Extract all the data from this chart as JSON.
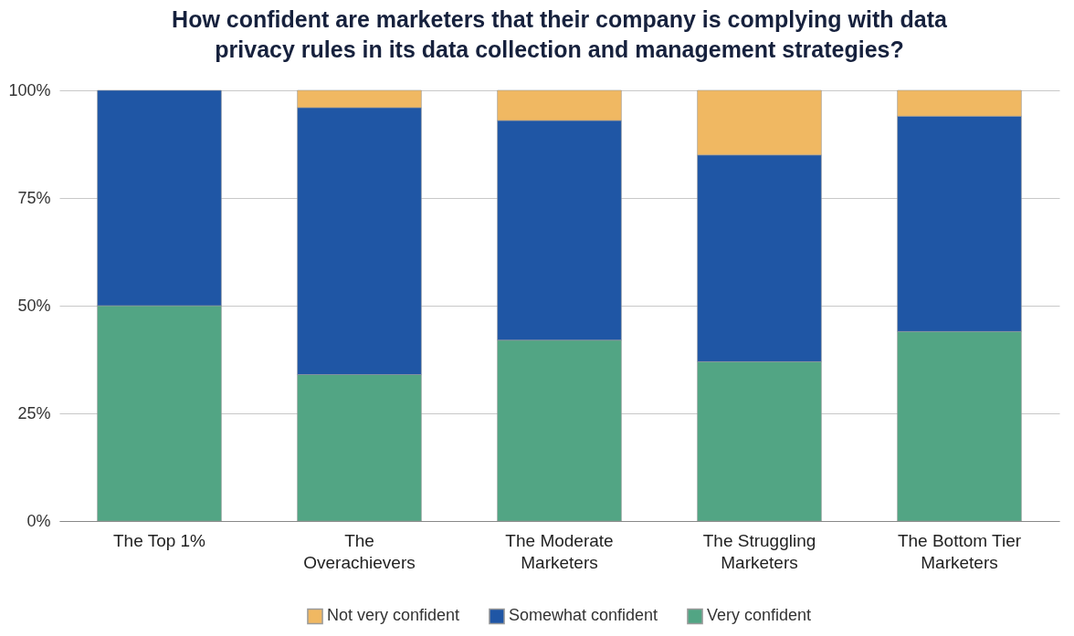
{
  "chart_data": {
    "type": "bar",
    "title": "How confident are marketers that their company is complying with data privacy rules in its data collection and management strategies?",
    "categories": [
      "The Top 1%",
      "The Overachievers",
      "The Moderate Marketers",
      "The Struggling Marketers",
      "The Bottom Tier Marketers"
    ],
    "stacked": true,
    "series": [
      {
        "name": "Very confident",
        "color": "#52a584",
        "values": [
          50,
          34,
          42,
          37,
          44
        ]
      },
      {
        "name": "Somewhat confident",
        "color": "#1f56a5",
        "values": [
          50,
          62,
          51,
          48,
          50
        ]
      },
      {
        "name": "Not very confident",
        "color": "#f0b862",
        "values": [
          0,
          4,
          7,
          15,
          6
        ]
      }
    ],
    "ylim": [
      0,
      100
    ],
    "yticks": [
      {
        "value": 0,
        "label": "0%"
      },
      {
        "value": 25,
        "label": "25%"
      },
      {
        "value": 50,
        "label": "50%"
      },
      {
        "value": 75,
        "label": "75%"
      },
      {
        "value": 100,
        "label": "100%"
      }
    ],
    "grid": "y",
    "legend": "bottom"
  }
}
